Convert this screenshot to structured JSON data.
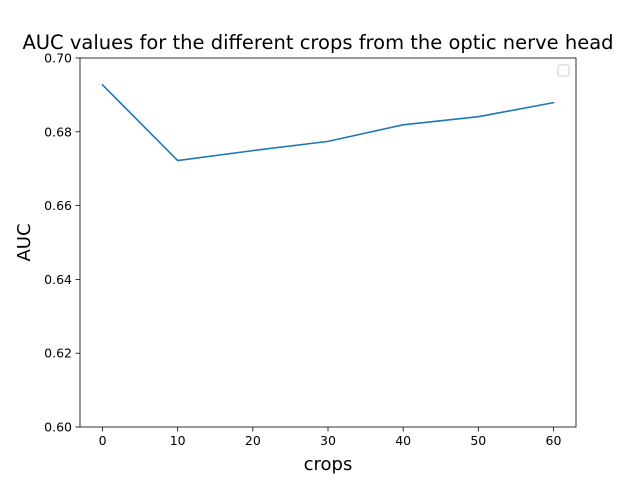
{
  "chart_data": {
    "type": "line",
    "title": "AUC values for the different crops from the optic nerve head",
    "xlabel": "crops",
    "ylabel": "AUC",
    "x": [
      0,
      10,
      20,
      30,
      40,
      50,
      60
    ],
    "series": [
      {
        "values": [
          0.6927,
          0.6722,
          0.6749,
          0.6774,
          0.6819,
          0.6841,
          0.6879
        ],
        "color": "#1f77b4"
      }
    ],
    "xlim": [
      -3,
      63
    ],
    "ylim": [
      0.6,
      0.7
    ],
    "xticks": [
      0,
      10,
      20,
      30,
      40,
      50,
      60
    ],
    "yticks": [
      0.6,
      0.62,
      0.64,
      0.66,
      0.68,
      0.7
    ],
    "xtick_labels": [
      "0",
      "10",
      "20",
      "30",
      "40",
      "50",
      "60"
    ],
    "ytick_labels": [
      "0.60",
      "0.62",
      "0.64",
      "0.66",
      "0.68",
      "0.70"
    ],
    "grid": false,
    "legend": "top-right",
    "legend_entries": []
  }
}
